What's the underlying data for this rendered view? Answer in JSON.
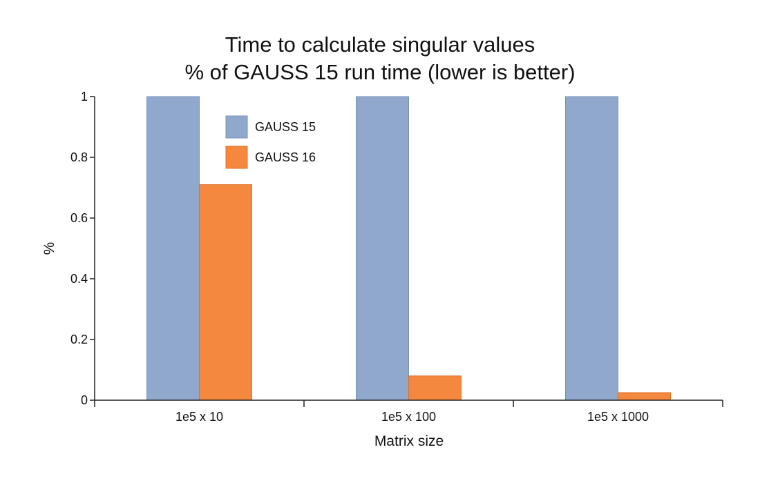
{
  "chart_data": {
    "type": "bar",
    "title": "Time to calculate singular values",
    "subtitle": "% of GAUSS 15 run time (lower is better)",
    "xlabel": "Matrix size",
    "ylabel": "%",
    "categories": [
      "1e5 x 10",
      "1e5 x 100",
      "1e5 x 1000"
    ],
    "series": [
      {
        "name": "GAUSS 15",
        "values": [
          1,
          1,
          1
        ],
        "color": "#8fa8cb",
        "stroke": "#7892b8"
      },
      {
        "name": "GAUSS 16",
        "values": [
          0.71,
          0.08,
          0.025
        ],
        "color": "#f4883e",
        "stroke": "#e0702a"
      }
    ],
    "ylim": [
      0,
      1
    ],
    "yticks": [
      0,
      0.2,
      0.4,
      0.6,
      0.8,
      1
    ],
    "ytick_labels": [
      "0",
      "0.2",
      "0.4",
      "0.6",
      "0.8",
      "1"
    ],
    "grid": false,
    "legend_position": "top-left-inside"
  }
}
